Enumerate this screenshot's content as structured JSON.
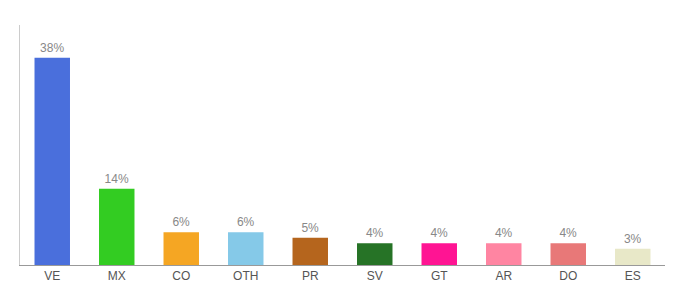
{
  "chart_data": {
    "type": "bar",
    "categories": [
      "VE",
      "MX",
      "CO",
      "OTH",
      "PR",
      "SV",
      "GT",
      "AR",
      "DO",
      "ES"
    ],
    "values": [
      38,
      14,
      6,
      6,
      5,
      4,
      4,
      4,
      4,
      3
    ],
    "value_labels": [
      "38%",
      "14%",
      "6%",
      "6%",
      "5%",
      "4%",
      "4%",
      "4%",
      "4%",
      "3%"
    ],
    "colors": [
      "#4a6fdc",
      "#33cc22",
      "#f5a623",
      "#85c9e8",
      "#b5651d",
      "#267326",
      "#ff1493",
      "#ff85a2",
      "#e87878",
      "#e8e8c8"
    ],
    "ylim": [
      0,
      44
    ],
    "grid": false,
    "data_labels": true,
    "tick_labels": "x"
  }
}
